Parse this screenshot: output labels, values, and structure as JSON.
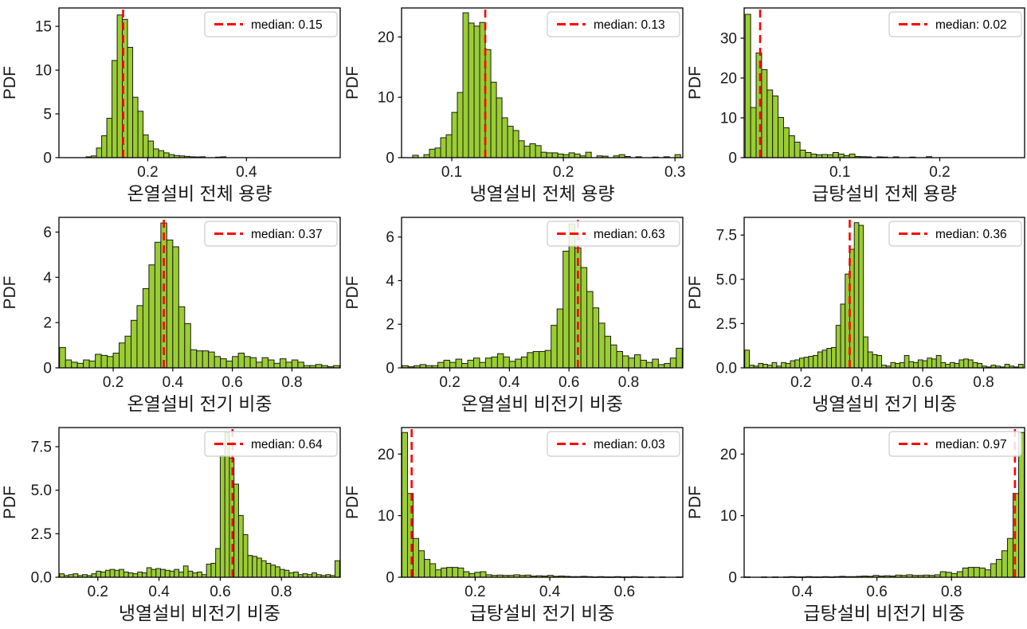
{
  "figure": {
    "ylabel": "PDF",
    "colors": {
      "bar_fill": "#9acd32",
      "bar_edge": "#1a1a1a",
      "median": "#ff0000",
      "spine": "#000000",
      "text": "#1a1a1a",
      "legend_bg": "#ffffff",
      "legend_border": "#cccccc",
      "legend_text": "#000000",
      "background": "#ffffff"
    }
  },
  "chart_data": [
    {
      "type": "bar",
      "xlabel": "온열설비 전체 용량",
      "ylabel": "PDF",
      "legend_label": "median: 0.15",
      "legend_position": "upper right",
      "median": 0.15,
      "grid": false,
      "bin_start": 0.075,
      "bin_width": 0.0105,
      "xlim": [
        0.02,
        0.59
      ],
      "ylim": [
        0,
        17.1
      ],
      "xticks": [
        {
          "v": 0.2,
          "label": "0.2"
        },
        {
          "v": 0.4,
          "label": "0.4"
        }
      ],
      "yticks": [
        {
          "v": 0,
          "label": "0"
        },
        {
          "v": 5,
          "label": "5"
        },
        {
          "v": 10,
          "label": "10"
        },
        {
          "v": 15,
          "label": "15"
        }
      ],
      "values": [
        0.1,
        0.2,
        1.1,
        2.5,
        4.5,
        11.1,
        16.3,
        15.8,
        12.6,
        6.9,
        5.3,
        2.6,
        1.9,
        1.0,
        0.8,
        0.55,
        0.35,
        0.25,
        0.2,
        0.15,
        0.1,
        0.08,
        0.1,
        0,
        0,
        0.06,
        0.1,
        0,
        0,
        0,
        0,
        0,
        0,
        0,
        0,
        0,
        0,
        0,
        0,
        0,
        0,
        0,
        0,
        0,
        0,
        0
      ]
    },
    {
      "type": "bar",
      "xlabel": "냉열설비 전체 용량",
      "ylabel": "PDF",
      "legend_label": "median: 0.13",
      "legend_position": "upper right",
      "median": 0.13,
      "grid": false,
      "bin_start": 0.065,
      "bin_width": 0.005,
      "xlim": [
        0.055,
        0.307
      ],
      "ylim": [
        0,
        24.8
      ],
      "xticks": [
        {
          "v": 0.1,
          "label": "0.1"
        },
        {
          "v": 0.2,
          "label": "0.2"
        },
        {
          "v": 0.3,
          "label": "0.3"
        }
      ],
      "yticks": [
        {
          "v": 0,
          "label": "0"
        },
        {
          "v": 10,
          "label": "10"
        },
        {
          "v": 20,
          "label": "20"
        }
      ],
      "values": [
        0.4,
        0,
        0.5,
        1.4,
        1.6,
        3.3,
        3.8,
        7.5,
        10.8,
        24.0,
        22.3,
        21.8,
        22.4,
        17.9,
        12.5,
        9.9,
        6.6,
        5.2,
        4.5,
        2.8,
        1.9,
        2.3,
        2.0,
        0.9,
        0.8,
        0.8,
        0.6,
        0.5,
        0.8,
        0.6,
        0.3,
        0.9,
        0,
        0.3,
        0.25,
        0,
        0.3,
        0.5,
        0.2,
        0,
        0.15,
        0,
        0,
        0.1,
        0,
        0.15,
        0,
        0.5
      ]
    },
    {
      "type": "bar",
      "xlabel": "급탕설비 전체 용량",
      "ylabel": "PDF",
      "legend_label": "median: 0.02",
      "legend_position": "upper right",
      "median": 0.02,
      "grid": false,
      "bin_start": 0.005,
      "bin_width": 0.0055,
      "xlim": [
        0.004,
        0.285
      ],
      "ylim": [
        0,
        37.6
      ],
      "xticks": [
        {
          "v": 0.1,
          "label": "0.1"
        },
        {
          "v": 0.2,
          "label": "0.2"
        }
      ],
      "yticks": [
        {
          "v": 0,
          "label": "0"
        },
        {
          "v": 10,
          "label": "10"
        },
        {
          "v": 20,
          "label": "20"
        },
        {
          "v": 30,
          "label": "30"
        }
      ],
      "values": [
        36.0,
        12.6,
        26.3,
        22.1,
        17.0,
        15.5,
        10.1,
        7.5,
        5.5,
        3.9,
        1.9,
        1.3,
        0.9,
        0.7,
        0.8,
        0.7,
        1.3,
        0.9,
        0.5,
        0.9,
        0.3,
        0.25,
        0.2,
        0,
        0.2,
        0.15,
        0,
        0.2,
        0,
        0,
        0.15,
        0,
        0,
        0.25,
        0,
        0,
        0,
        0,
        0,
        0,
        0,
        0,
        0,
        0,
        0,
        0,
        0,
        0,
        0,
        0
      ]
    },
    {
      "type": "bar",
      "xlabel": "온열설비 전기 비중",
      "ylabel": "PDF",
      "legend_label": "median: 0.37",
      "legend_position": "upper right",
      "median": 0.37,
      "grid": false,
      "bin_start": 0.02,
      "bin_width": 0.02,
      "xlim": [
        0.018,
        0.962
      ],
      "ylim": [
        0,
        6.65
      ],
      "xticks": [
        {
          "v": 0.2,
          "label": "0.2"
        },
        {
          "v": 0.4,
          "label": "0.4"
        },
        {
          "v": 0.6,
          "label": "0.6"
        },
        {
          "v": 0.8,
          "label": "0.8"
        }
      ],
      "yticks": [
        {
          "v": 0,
          "label": "0"
        },
        {
          "v": 2,
          "label": "2"
        },
        {
          "v": 4,
          "label": "4"
        },
        {
          "v": 6,
          "label": "6"
        }
      ],
      "values": [
        0.9,
        0.35,
        0.25,
        0.2,
        0.35,
        0.3,
        0.6,
        0.55,
        0.5,
        0.65,
        1.1,
        1.4,
        2.1,
        2.75,
        3.5,
        4.55,
        5.55,
        6.4,
        5.65,
        5.35,
        2.7,
        1.95,
        0.8,
        0.75,
        0.75,
        0.7,
        0.5,
        0.4,
        0.3,
        0.5,
        0.65,
        0.5,
        0.45,
        0.25,
        0.45,
        0.35,
        0.2,
        0.4,
        0.25,
        0.35,
        0.25,
        0.1,
        0.1,
        0.15,
        0.1,
        0.05,
        0.1
      ]
    },
    {
      "type": "bar",
      "xlabel": "온열설비 비전기 비중",
      "ylabel": "PDF",
      "legend_label": "median: 0.63",
      "legend_position": "upper right",
      "median": 0.63,
      "grid": false,
      "bin_start": 0.04,
      "bin_width": 0.02,
      "xlim": [
        0.038,
        0.982
      ],
      "ylim": [
        0,
        6.9
      ],
      "xticks": [
        {
          "v": 0.2,
          "label": "0.2"
        },
        {
          "v": 0.4,
          "label": "0.4"
        },
        {
          "v": 0.6,
          "label": "0.6"
        },
        {
          "v": 0.8,
          "label": "0.8"
        }
      ],
      "yticks": [
        {
          "v": 0,
          "label": "0"
        },
        {
          "v": 2,
          "label": "2"
        },
        {
          "v": 4,
          "label": "4"
        },
        {
          "v": 6,
          "label": "6"
        }
      ],
      "values": [
        0.1,
        0.05,
        0.1,
        0.15,
        0.1,
        0.1,
        0.25,
        0.35,
        0.25,
        0.4,
        0.2,
        0.35,
        0.45,
        0.25,
        0.45,
        0.5,
        0.65,
        0.5,
        0.3,
        0.4,
        0.5,
        0.7,
        0.75,
        0.75,
        0.8,
        1.95,
        2.7,
        5.35,
        6.6,
        5.5,
        4.6,
        3.5,
        2.75,
        2.05,
        1.45,
        1.05,
        0.75,
        0.55,
        0.45,
        0.6,
        0.35,
        0.25,
        0.4,
        0.15,
        0.2,
        0.45,
        0.9
      ]
    },
    {
      "type": "bar",
      "xlabel": "냉열설비 전기 비중",
      "ylabel": "PDF",
      "legend_label": "median: 0.36",
      "legend_position": "upper right",
      "median": 0.36,
      "grid": false,
      "bin_start": 0.015,
      "bin_width": 0.015,
      "xlim": [
        0.013,
        0.935
      ],
      "ylim": [
        0,
        8.5
      ],
      "xticks": [
        {
          "v": 0.2,
          "label": "0.2"
        },
        {
          "v": 0.4,
          "label": "0.4"
        },
        {
          "v": 0.6,
          "label": "0.6"
        },
        {
          "v": 0.8,
          "label": "0.8"
        }
      ],
      "yticks": [
        {
          "v": 0,
          "label": "0.0"
        },
        {
          "v": 2.5,
          "label": "2.5"
        },
        {
          "v": 5,
          "label": "5.0"
        },
        {
          "v": 7.5,
          "label": "7.5"
        }
      ],
      "values": [
        1.0,
        0.15,
        0.1,
        0.25,
        0.2,
        0.15,
        0.3,
        0.1,
        0.3,
        0.25,
        0.4,
        0.45,
        0.55,
        0.6,
        0.65,
        0.7,
        0.9,
        1.0,
        1.1,
        1.15,
        2.4,
        3.6,
        5.3,
        6.7,
        8.2,
        8.05,
        1.75,
        0.9,
        0.75,
        0.7,
        0.15,
        0.1,
        0.3,
        0.25,
        0.3,
        0.7,
        0.35,
        0.3,
        0.45,
        0.4,
        0.55,
        0.5,
        0.7,
        0.3,
        0.2,
        0.3,
        0.25,
        0.45,
        0.5,
        0.45,
        0.3,
        0.25,
        0.1,
        0.05,
        0.15,
        0.1,
        0.05,
        0.2,
        0.1,
        0.05,
        0.2
      ]
    },
    {
      "type": "bar",
      "xlabel": "냉열설비 비전기 비중",
      "ylabel": "PDF",
      "legend_label": "median: 0.64",
      "legend_position": "upper right",
      "median": 0.64,
      "grid": false,
      "bin_start": 0.075,
      "bin_width": 0.015,
      "xlim": [
        0.073,
        0.992
      ],
      "ylim": [
        0,
        8.6
      ],
      "xticks": [
        {
          "v": 0.2,
          "label": "0.2"
        },
        {
          "v": 0.4,
          "label": "0.4"
        },
        {
          "v": 0.6,
          "label": "0.6"
        },
        {
          "v": 0.8,
          "label": "0.8"
        }
      ],
      "yticks": [
        {
          "v": 0,
          "label": "0.0"
        },
        {
          "v": 2.5,
          "label": "2.5"
        },
        {
          "v": 5,
          "label": "5.0"
        },
        {
          "v": 7.5,
          "label": "7.5"
        }
      ],
      "values": [
        0.2,
        0.1,
        0.15,
        0.2,
        0.1,
        0.15,
        0.1,
        0.2,
        0.35,
        0.3,
        0.4,
        0.45,
        0.4,
        0.45,
        0.3,
        0.25,
        0.2,
        0.3,
        0.25,
        0.55,
        0.45,
        0.5,
        0.45,
        0.4,
        0.35,
        0.45,
        0.3,
        0.65,
        0.35,
        0.25,
        0.3,
        0.15,
        0.75,
        0.8,
        1.65,
        7.0,
        8.3,
        6.85,
        5.35,
        3.55,
        2.45,
        1.25,
        1.2,
        1.1,
        0.95,
        0.8,
        0.7,
        0.6,
        0.45,
        0.4,
        0.25,
        0.3,
        0.15,
        0.2,
        0.15,
        0.25,
        0.15,
        0.1,
        0.15,
        0.1,
        0.95
      ]
    },
    {
      "type": "bar",
      "xlabel": "급탕설비 전기 비중",
      "ylabel": "PDF",
      "legend_label": "median: 0.03",
      "legend_position": "upper right",
      "median": 0.03,
      "grid": false,
      "bin_start": 0.004,
      "bin_width": 0.015,
      "xlim": [
        0.003,
        0.756
      ],
      "ylim": [
        0,
        24.3
      ],
      "xticks": [
        {
          "v": 0.2,
          "label": "0.2"
        },
        {
          "v": 0.4,
          "label": "0.4"
        },
        {
          "v": 0.6,
          "label": "0.6"
        }
      ],
      "yticks": [
        {
          "v": 0,
          "label": "0"
        },
        {
          "v": 10,
          "label": "10"
        },
        {
          "v": 20,
          "label": "20"
        }
      ],
      "values": [
        23.5,
        13.6,
        6.3,
        4.3,
        2.9,
        2.2,
        1.2,
        1.5,
        1.6,
        1.6,
        1.5,
        0.9,
        0.6,
        0.8,
        0.9,
        0.4,
        0.3,
        0.35,
        0.3,
        0.3,
        0.4,
        0.3,
        0.35,
        0.2,
        0.25,
        0.2,
        0.3,
        0.15,
        0.2,
        0.15,
        0.1,
        0.1,
        0.15,
        0.1,
        0.05,
        0.1,
        0.05,
        0.05,
        0.1,
        0.05,
        0.05,
        0.1,
        0.05,
        0,
        0.05,
        0,
        0.05,
        0,
        0,
        0.05
      ]
    },
    {
      "type": "bar",
      "xlabel": "급탕설비 비전기 비중",
      "ylabel": "PDF",
      "legend_label": "median: 0.97",
      "legend_position": "upper right",
      "median": 0.97,
      "grid": false,
      "bin_start": 0.245,
      "bin_width": 0.015,
      "xlim": [
        0.244,
        0.996
      ],
      "ylim": [
        0,
        24.3
      ],
      "xticks": [
        {
          "v": 0.4,
          "label": "0.4"
        },
        {
          "v": 0.6,
          "label": "0.6"
        },
        {
          "v": 0.8,
          "label": "0.8"
        }
      ],
      "yticks": [
        {
          "v": 0,
          "label": "0"
        },
        {
          "v": 10,
          "label": "10"
        },
        {
          "v": 20,
          "label": "20"
        }
      ],
      "values": [
        0.05,
        0,
        0,
        0.05,
        0,
        0.05,
        0,
        0.05,
        0.1,
        0.05,
        0.05,
        0.1,
        0.05,
        0.05,
        0.1,
        0.05,
        0.1,
        0.15,
        0.1,
        0.1,
        0.15,
        0.2,
        0.15,
        0.3,
        0.2,
        0.25,
        0.2,
        0.35,
        0.3,
        0.4,
        0.3,
        0.3,
        0.35,
        0.3,
        0.4,
        0.9,
        0.8,
        0.6,
        0.9,
        1.5,
        1.6,
        1.6,
        1.5,
        1.2,
        2.2,
        2.9,
        4.3,
        6.3,
        13.6,
        23.5
      ]
    }
  ]
}
